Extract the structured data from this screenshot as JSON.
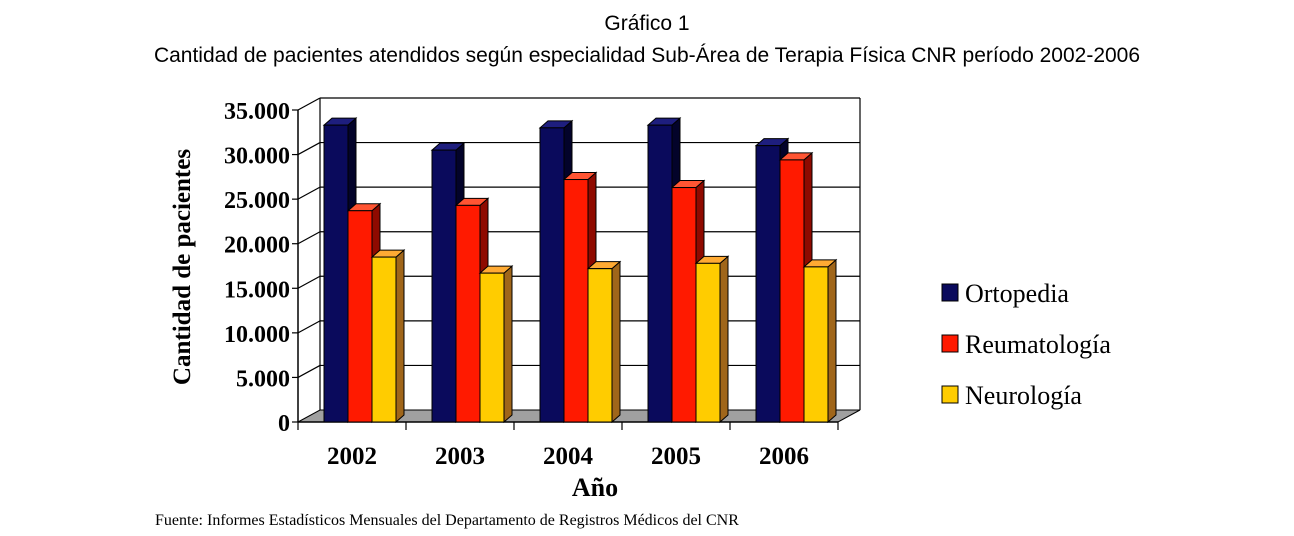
{
  "chart_data": {
    "type": "bar",
    "title": "Gráfico 1",
    "subtitle": "Cantidad de pacientes atendidos según especialidad Sub-Área de Terapia Física CNR período 2002-2006",
    "xlabel": "Año",
    "ylabel": "Cantidad de pacientes",
    "ylim": [
      0,
      35000
    ],
    "yticks": [
      "0",
      "5.000",
      "10.000",
      "15.000",
      "20.000",
      "25.000",
      "30.000",
      "35.000"
    ],
    "categories": [
      "2002",
      "2003",
      "2004",
      "2005",
      "2006"
    ],
    "series": [
      {
        "name": "Ortopedia",
        "values": [
          33300,
          30500,
          33000,
          33300,
          31000
        ],
        "color": "#0a0a5c",
        "side": "#03032a",
        "top": "#1e1e7e"
      },
      {
        "name": "Reumatología",
        "values": [
          23700,
          24300,
          27200,
          26300,
          29400
        ],
        "color": "#ff1a00",
        "side": "#8f0a00",
        "top": "#ff5533"
      },
      {
        "name": "Neurología",
        "values": [
          18500,
          16700,
          17200,
          17800,
          17400
        ],
        "color": "#ffcc00",
        "side": "#a0661a",
        "top": "#ffaa33"
      }
    ],
    "grid": true,
    "legend_position": "right",
    "source": "Fuente: Informes Estadísticos Mensuales del Departamento de Registros Médicos del CNR"
  }
}
